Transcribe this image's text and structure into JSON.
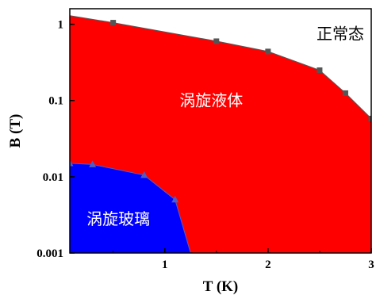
{
  "chart_data": {
    "type": "area",
    "xlabel": "T (K)",
    "ylabel": "B (T)",
    "xlim": [
      0.08,
      3.0
    ],
    "ylim": [
      0.001,
      1.6
    ],
    "yscale": "log",
    "grid": false,
    "x_ticks": [
      {
        "value": 1,
        "label": "1"
      },
      {
        "value": 2,
        "label": "2"
      },
      {
        "value": 3,
        "label": "3"
      }
    ],
    "y_ticks": [
      {
        "value": 0.001,
        "label": "0.001"
      },
      {
        "value": 0.01,
        "label": "0.01"
      },
      {
        "value": 0.1,
        "label": "0.1"
      },
      {
        "value": 1,
        "label": "1"
      }
    ],
    "regions": [
      {
        "label": "正常态",
        "color": "#ffffff",
        "text_color": "#000000",
        "at": {
          "x": 2.7,
          "y": 0.75
        }
      },
      {
        "label": "涡旋液体",
        "color": "#ff0000",
        "text_color": "#ffffff",
        "at": {
          "x": 1.45,
          "y": 0.1
        }
      },
      {
        "label": "涡旋玻璃",
        "color": "#0000ff",
        "text_color": "#ffffff",
        "at": {
          "x": 0.55,
          "y": 0.0028
        }
      }
    ],
    "series": [
      {
        "marker": "square",
        "color": "#555555",
        "boundary_start": {
          "x": 0.08,
          "y": 1.3
        },
        "x": [
          0.5,
          1.5,
          2.0,
          2.5,
          2.75,
          3.0
        ],
        "y": [
          1.05,
          0.6,
          0.44,
          0.25,
          0.125,
          0.058
        ]
      },
      {
        "marker": "triangle",
        "color": "#4d5dc8",
        "boundary_start": {
          "x": 0.08,
          "y": 0.015
        },
        "boundary_end": {
          "x": 1.25,
          "y": 0.001
        },
        "x": [
          0.08,
          0.3,
          0.8,
          1.1
        ],
        "y": [
          0.015,
          0.0145,
          0.0105,
          0.005
        ]
      }
    ]
  }
}
